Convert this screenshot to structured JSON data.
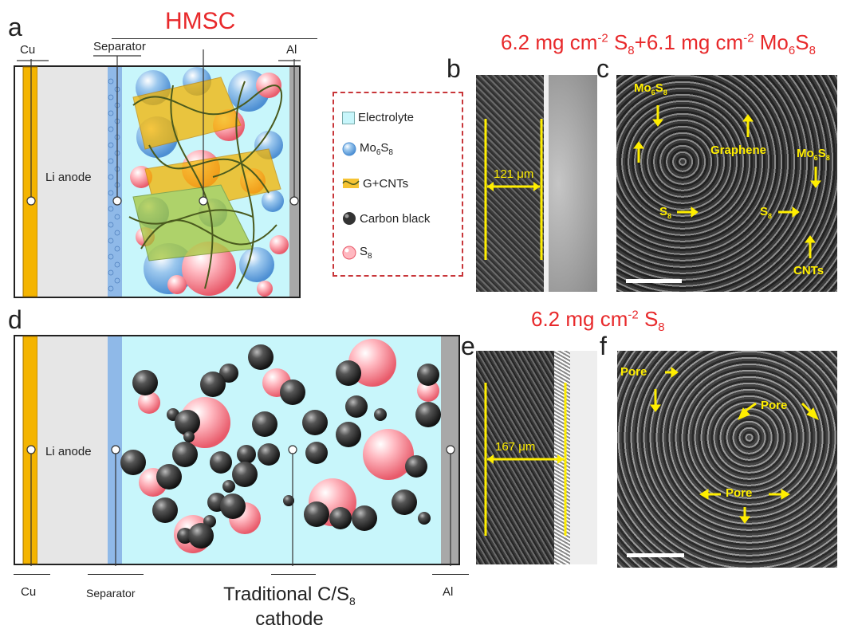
{
  "panels": {
    "a": "a",
    "b": "b",
    "c": "c",
    "d": "d",
    "e": "e",
    "f": "f"
  },
  "title_top": "HMSC",
  "header_bc": {
    "main": "6.2 mg cm",
    "sup1": "-2",
    "s": " S",
    "sub1": "8",
    "plus": "+6.1 mg cm",
    "sup2": "-2",
    "mo": " Mo",
    "sub2": "6",
    "s2": "S",
    "sub3": "8"
  },
  "header_ef": {
    "main": "6.2 mg cm",
    "sup": "-2",
    "s": " S",
    "sub": "8"
  },
  "schematic": {
    "cu": "Cu",
    "separator": "Separator",
    "al": "Al",
    "li_anode": "Li anode",
    "traditional_line1_pre": "Traditional C/S",
    "traditional_sub": "8",
    "traditional_line2": "cathode"
  },
  "legend": {
    "electrolyte": "Electrolyte",
    "mo": "Mo",
    "mo_sub1": "6",
    "mo_s": "S",
    "mo_sub2": "8",
    "gcnt": "G+CNTs",
    "carbon": "Carbon black",
    "s": "S",
    "s_sub": "8"
  },
  "sem_b": {
    "thickness": "121 μm"
  },
  "sem_e": {
    "thickness": "167 μm"
  },
  "sem_c": {
    "mo": "Mo",
    "sub6": "6",
    "s": "S",
    "sub8": "8",
    "graphene": "Graphene",
    "s8": "S",
    "cnts": "CNTs"
  },
  "sem_f": {
    "pore": "Pore"
  },
  "colors": {
    "red": "#e8292b",
    "yellow": "#ffee00",
    "electrolyte": "#c8f6fb",
    "anode": "#e6e6e6",
    "foil": "#f4b400"
  }
}
